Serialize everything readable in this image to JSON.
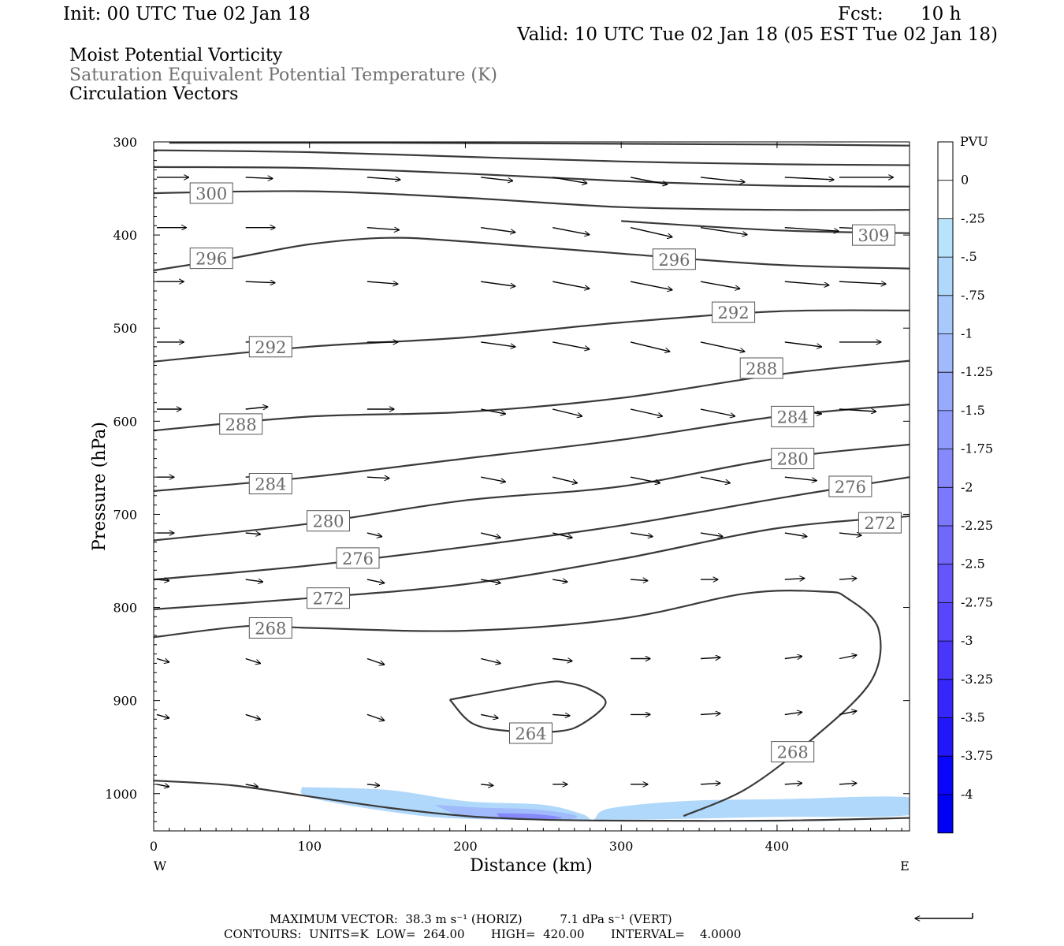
{
  "header": {
    "init": "Init: 00 UTC Tue 02 Jan 18",
    "fcst_label": "Fcst:",
    "fcst_value": "10 h",
    "valid": "Valid: 10 UTC Tue 02 Jan 18 (05 EST Tue 02 Jan 18)"
  },
  "fields": [
    {
      "label": "Moist Potential Vorticity",
      "color": "#000000"
    },
    {
      "label": "Saturation Equivalent Potential Temperature (K)",
      "color": "#707070"
    },
    {
      "label": "Circulation Vectors",
      "color": "#000000"
    }
  ],
  "footer": {
    "max_vector": "MAXIMUM VECTOR:  38.3 m s⁻¹ (HORIZ)          7.1 dPa s⁻¹ (VERT)",
    "contours": "CONTOURS:  UNITS=K  LOW=  264.00       HIGH=  420.00       INTERVAL=    4.0000"
  },
  "chart_data": {
    "type": "contour",
    "xlabel": "Distance (km)",
    "ylabel": "Pressure (hPa)",
    "xlim": [
      0,
      485
    ],
    "ylim": [
      1040,
      300
    ],
    "x_ticks": [
      0,
      100,
      200,
      300,
      400
    ],
    "y_ticks": [
      300,
      400,
      500,
      600,
      700,
      800,
      900,
      1000
    ],
    "x_end_labels": {
      "left": "W",
      "right": "E"
    },
    "colorbar": {
      "title": "PVU",
      "labels": [
        "0",
        "-.25",
        "-.5",
        "-.75",
        "-1",
        "-1.25",
        "-1.5",
        "-1.75",
        "-2",
        "-2.25",
        "-2.5",
        "-2.75",
        "-3",
        "-3.25",
        "-3.5",
        "-3.75",
        "-4"
      ],
      "colors": [
        "#ffffff",
        "#ffffff",
        "#b8e4fb",
        "#b0d8fb",
        "#a8c9fb",
        "#a0bafb",
        "#98aafb",
        "#8f9afb",
        "#8689fb",
        "#7c78fb",
        "#7167fb",
        "#6556fb",
        "#5746fb",
        "#4836fb",
        "#3626fb",
        "#2216fb",
        "#0a06fb",
        "#0000f5"
      ]
    },
    "contours": [
      {
        "level": "",
        "points": [
          [
            10,
            301
          ],
          [
            150,
            301
          ],
          [
            300,
            302
          ],
          [
            420,
            303
          ],
          [
            485,
            304
          ]
        ]
      },
      {
        "level": "",
        "points": [
          [
            0,
            309
          ],
          [
            100,
            311
          ],
          [
            200,
            316
          ],
          [
            300,
            321
          ],
          [
            400,
            324
          ],
          [
            485,
            325
          ]
        ]
      },
      {
        "level": "",
        "points": [
          [
            0,
            327
          ],
          [
            100,
            328
          ],
          [
            200,
            334
          ],
          [
            300,
            342
          ],
          [
            400,
            347
          ],
          [
            485,
            348
          ]
        ]
      },
      {
        "level": "300",
        "points": [
          [
            0,
            355
          ],
          [
            100,
            353
          ],
          [
            200,
            360
          ],
          [
            300,
            370
          ],
          [
            400,
            373
          ],
          [
            485,
            373
          ]
        ]
      },
      {
        "level": "309",
        "points": [
          [
            300,
            385
          ],
          [
            400,
            395
          ],
          [
            485,
            398
          ]
        ]
      },
      {
        "level": "296",
        "points": [
          [
            0,
            438
          ],
          [
            50,
            425
          ],
          [
            100,
            410
          ],
          [
            150,
            403
          ],
          [
            200,
            407
          ],
          [
            300,
            420
          ],
          [
            400,
            432
          ],
          [
            485,
            436
          ]
        ]
      },
      {
        "level": "292",
        "points": [
          [
            0,
            536
          ],
          [
            100,
            520
          ],
          [
            200,
            510
          ],
          [
            300,
            494
          ],
          [
            400,
            482
          ],
          [
            485,
            481
          ]
        ]
      },
      {
        "level": "288",
        "points": [
          [
            0,
            610
          ],
          [
            100,
            595
          ],
          [
            200,
            590
          ],
          [
            300,
            575
          ],
          [
            400,
            550
          ],
          [
            485,
            535
          ]
        ]
      },
      {
        "level": "284",
        "points": [
          [
            0,
            675
          ],
          [
            100,
            660
          ],
          [
            200,
            640
          ],
          [
            300,
            620
          ],
          [
            400,
            595
          ],
          [
            485,
            582
          ]
        ]
      },
      {
        "level": "280",
        "points": [
          [
            0,
            728
          ],
          [
            100,
            710
          ],
          [
            200,
            685
          ],
          [
            300,
            670
          ],
          [
            400,
            640
          ],
          [
            485,
            625
          ]
        ]
      },
      {
        "level": "276",
        "points": [
          [
            0,
            770
          ],
          [
            100,
            755
          ],
          [
            200,
            735
          ],
          [
            300,
            712
          ],
          [
            400,
            683
          ],
          [
            485,
            660
          ]
        ]
      },
      {
        "level": "272",
        "points": [
          [
            0,
            802
          ],
          [
            100,
            790
          ],
          [
            200,
            775
          ],
          [
            300,
            748
          ],
          [
            400,
            715
          ],
          [
            485,
            702
          ]
        ]
      },
      {
        "level": "268",
        "points": [
          [
            0,
            832
          ],
          [
            60,
            820
          ],
          [
            100,
            822
          ],
          [
            200,
            825
          ],
          [
            300,
            812
          ],
          [
            380,
            785
          ],
          [
            430,
            783
          ],
          [
            445,
            790
          ],
          [
            465,
            823
          ],
          [
            460,
            880
          ],
          [
            420,
            945
          ],
          [
            380,
            995
          ],
          [
            340,
            1024
          ]
        ]
      },
      {
        "level": "264",
        "points": [
          [
            190,
            899
          ],
          [
            250,
            881
          ],
          [
            265,
            881
          ],
          [
            280,
            888
          ],
          [
            290,
            903
          ],
          [
            275,
            925
          ],
          [
            260,
            933
          ],
          [
            230,
            933
          ],
          [
            205,
            925
          ],
          [
            190,
            899
          ]
        ]
      },
      {
        "level": "",
        "points": [
          [
            0,
            986
          ],
          [
            50,
            991
          ],
          [
            100,
            1003
          ],
          [
            150,
            1015
          ],
          [
            200,
            1024
          ],
          [
            250,
            1028
          ],
          [
            300,
            1029
          ],
          [
            400,
            1029
          ],
          [
            485,
            1026
          ]
        ]
      }
    ],
    "contour_labels": [
      {
        "text": "300",
        "x": 37,
        "p": 355
      },
      {
        "text": "309",
        "x": 462,
        "p": 400
      },
      {
        "text": "296",
        "x": 37,
        "p": 425
      },
      {
        "text": "296",
        "x": 334,
        "p": 426
      },
      {
        "text": "292",
        "x": 372,
        "p": 483
      },
      {
        "text": "292",
        "x": 75,
        "p": 520
      },
      {
        "text": "288",
        "x": 390,
        "p": 543
      },
      {
        "text": "288",
        "x": 56,
        "p": 603
      },
      {
        "text": "284",
        "x": 410,
        "p": 595
      },
      {
        "text": "284",
        "x": 75,
        "p": 667
      },
      {
        "text": "280",
        "x": 410,
        "p": 640
      },
      {
        "text": "280",
        "x": 112,
        "p": 707
      },
      {
        "text": "276",
        "x": 447,
        "p": 670
      },
      {
        "text": "276",
        "x": 131,
        "p": 747
      },
      {
        "text": "272",
        "x": 466,
        "p": 709
      },
      {
        "text": "272",
        "x": 112,
        "p": 790
      },
      {
        "text": "268",
        "x": 75,
        "p": 822
      },
      {
        "text": "268",
        "x": 410,
        "p": 955
      },
      {
        "text": "264",
        "x": 242,
        "p": 935
      }
    ],
    "shading": [
      {
        "value": -0.5,
        "points": [
          [
            95,
            993
          ],
          [
            150,
            996
          ],
          [
            200,
            1008
          ],
          [
            250,
            1012
          ],
          [
            275,
            1022
          ],
          [
            282,
            1028
          ],
          [
            292,
            1016
          ],
          [
            340,
            1008
          ],
          [
            400,
            1006
          ],
          [
            485,
            1004
          ],
          [
            485,
            1023
          ],
          [
            400,
            1025
          ],
          [
            300,
            1028
          ],
          [
            200,
            1027
          ],
          [
            150,
            1019
          ],
          [
            100,
            1004
          ],
          [
            95,
            993
          ]
        ]
      },
      {
        "value": -1.0,
        "points": [
          [
            180,
            1012
          ],
          [
            210,
            1015
          ],
          [
            245,
            1017
          ],
          [
            270,
            1023
          ],
          [
            265,
            1028
          ],
          [
            230,
            1028
          ],
          [
            200,
            1025
          ],
          [
            180,
            1012
          ]
        ]
      },
      {
        "value": -1.75,
        "points": [
          [
            220,
            1021
          ],
          [
            245,
            1022
          ],
          [
            262,
            1026
          ],
          [
            245,
            1028
          ],
          [
            225,
            1027
          ],
          [
            220,
            1021
          ]
        ]
      }
    ],
    "vector_rows": [
      {
        "p": 338,
        "x": [
          2,
          59,
          137,
          210,
          256,
          306,
          351,
          405,
          440
        ],
        "u": [
          26,
          22,
          27,
          26,
          28,
          30,
          36,
          40,
          44
        ],
        "w": [
          0,
          1,
          2,
          3,
          5,
          6,
          4,
          2,
          0
        ]
      },
      {
        "p": 392,
        "x": [
          2,
          59,
          137,
          210,
          256,
          306,
          351,
          405,
          440
        ],
        "u": [
          24,
          24,
          26,
          28,
          30,
          34,
          38,
          44,
          44
        ],
        "w": [
          0,
          0,
          2,
          4,
          6,
          8,
          6,
          3,
          2
        ]
      },
      {
        "p": 450,
        "x": [
          2,
          59,
          137,
          210,
          256,
          306,
          351,
          405,
          440
        ],
        "u": [
          22,
          24,
          25,
          28,
          30,
          34,
          32,
          36,
          38
        ],
        "w": [
          0,
          1,
          2,
          4,
          6,
          7,
          6,
          3,
          2
        ]
      },
      {
        "p": 515,
        "x": [
          2,
          59,
          137,
          210,
          256,
          306,
          351,
          405,
          440
        ],
        "u": [
          22,
          24,
          25,
          28,
          30,
          32,
          36,
          30,
          34
        ],
        "w": [
          0,
          -1,
          0,
          4,
          6,
          8,
          8,
          4,
          0
        ]
      },
      {
        "p": 587,
        "x": [
          2,
          59,
          137,
          210,
          256,
          306,
          351,
          405,
          440
        ],
        "u": [
          20,
          18,
          22,
          20,
          24,
          26,
          28,
          30,
          30
        ],
        "w": [
          0,
          -2,
          0,
          4,
          6,
          6,
          6,
          4,
          2
        ]
      },
      {
        "p": 660,
        "x": [
          2,
          59,
          137,
          210,
          256,
          306,
          351,
          405,
          440
        ],
        "u": [
          14,
          16,
          18,
          20,
          20,
          24,
          24,
          26,
          24
        ],
        "w": [
          0,
          -1,
          1,
          4,
          5,
          5,
          5,
          3,
          2
        ]
      },
      {
        "p": 720,
        "x": [
          2,
          59,
          137,
          210,
          256,
          306,
          351,
          405,
          440
        ],
        "u": [
          14,
          12,
          12,
          16,
          16,
          18,
          18,
          18,
          18
        ],
        "w": [
          0,
          1,
          3,
          4,
          4,
          3,
          3,
          3,
          2
        ]
      },
      {
        "p": 770,
        "x": [
          2,
          59,
          137,
          210,
          256,
          306,
          351,
          405,
          440
        ],
        "u": [
          10,
          14,
          14,
          16,
          12,
          14,
          14,
          16,
          14
        ],
        "w": [
          1,
          2,
          3,
          3,
          2,
          1,
          0,
          -1,
          -1
        ]
      },
      {
        "p": 855,
        "x": [
          2,
          59,
          137,
          210,
          256,
          306,
          351,
          405,
          440
        ],
        "u": [
          10,
          12,
          14,
          16,
          16,
          16,
          16,
          14,
          14
        ],
        "w": [
          3,
          4,
          5,
          4,
          2,
          0,
          -1,
          -2,
          -3
        ]
      },
      {
        "p": 915,
        "x": [
          2,
          59,
          137,
          210,
          256,
          306,
          351,
          405,
          440
        ],
        "u": [
          10,
          12,
          14,
          14,
          14,
          16,
          16,
          14,
          14
        ],
        "w": [
          3,
          4,
          5,
          3,
          1,
          0,
          -1,
          -2,
          -3
        ]
      },
      {
        "p": 990,
        "x": [
          2,
          59,
          137,
          210,
          256,
          306,
          351,
          405,
          440
        ],
        "u": [
          10,
          10,
          10,
          10,
          12,
          14,
          16,
          14,
          14
        ],
        "w": [
          2,
          2,
          1,
          1,
          0,
          0,
          -1,
          -1,
          -1
        ]
      }
    ]
  }
}
